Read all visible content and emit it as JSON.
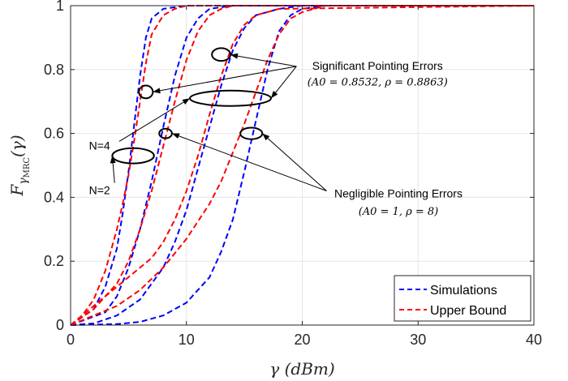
{
  "chart_data": {
    "type": "line",
    "xlabel": "γ (dBm)",
    "ylabel": "F_γMRC(γ)",
    "ylabel_main": "F",
    "ylabel_sub": "γ",
    "ylabel_subsub": "MRC",
    "ylabel_arg": "(γ)",
    "xlim": [
      0,
      40
    ],
    "ylim": [
      0,
      1
    ],
    "xticks": [
      0,
      10,
      20,
      30,
      40
    ],
    "yticks": [
      0,
      0.2,
      0.4,
      0.6,
      0.8,
      1
    ],
    "xtick_labels": [
      "0",
      "10",
      "20",
      "30",
      "40"
    ],
    "ytick_labels": [
      "0",
      "0.2",
      "0.4",
      "0.6",
      "0.8",
      "1"
    ],
    "grid": true,
    "legend_position": "bottom-right",
    "colors": {
      "simulations": "#0000ff",
      "upper_bound": "#ff0000"
    },
    "series": [
      {
        "name": "Simulations",
        "style": "dashed",
        "color": "#0000ff",
        "x": [
          0,
          2,
          3,
          4,
          4.5,
          5,
          5.5,
          6,
          6.5,
          7,
          8,
          10,
          20,
          40
        ],
        "y": [
          0,
          0.05,
          0.12,
          0.24,
          0.35,
          0.48,
          0.63,
          0.78,
          0.9,
          0.96,
          0.99,
          1.0,
          1.0,
          1.0
        ]
      },
      {
        "name": "",
        "style": "dashed",
        "color": "#0000ff",
        "x": [
          0,
          3,
          4,
          5,
          6,
          7,
          8,
          9,
          10,
          11,
          12,
          14,
          20,
          40
        ],
        "y": [
          0,
          0.04,
          0.09,
          0.18,
          0.3,
          0.45,
          0.62,
          0.78,
          0.9,
          0.96,
          0.99,
          1.0,
          1.0,
          1.0
        ]
      },
      {
        "name": "",
        "style": "dashed",
        "color": "#0000ff",
        "x": [
          0,
          2,
          4,
          6,
          8,
          9,
          10,
          11,
          12,
          13,
          14,
          15,
          16,
          18,
          20,
          40
        ],
        "y": [
          0,
          0.005,
          0.03,
          0.08,
          0.18,
          0.26,
          0.36,
          0.49,
          0.62,
          0.75,
          0.86,
          0.93,
          0.97,
          0.99,
          1.0,
          1.0
        ]
      },
      {
        "name": "",
        "style": "dashed",
        "color": "#0000ff",
        "x": [
          0,
          4,
          6,
          8,
          10,
          12,
          13,
          14,
          15,
          16,
          17,
          18,
          19,
          20,
          22,
          40
        ],
        "y": [
          0,
          0.003,
          0.01,
          0.03,
          0.07,
          0.15,
          0.23,
          0.33,
          0.48,
          0.64,
          0.8,
          0.92,
          0.97,
          0.99,
          1.0,
          1.0
        ]
      },
      {
        "name": "Upper Bound",
        "style": "dashed",
        "color": "#ff0000",
        "x": [
          0,
          1,
          2,
          3,
          4,
          4.5,
          5,
          5.5,
          6,
          6.5,
          7,
          8,
          9,
          10,
          12,
          40
        ],
        "y": [
          0,
          0.03,
          0.08,
          0.17,
          0.3,
          0.38,
          0.47,
          0.58,
          0.7,
          0.82,
          0.91,
          0.97,
          0.99,
          1.0,
          1.0,
          1.0
        ]
      },
      {
        "name": "",
        "style": "dashed",
        "color": "#ff0000",
        "x": [
          0,
          2,
          4,
          5,
          6,
          7,
          8,
          9,
          10,
          11,
          12,
          13,
          14,
          16,
          40
        ],
        "y": [
          0,
          0.05,
          0.13,
          0.2,
          0.3,
          0.42,
          0.56,
          0.7,
          0.83,
          0.92,
          0.97,
          0.99,
          1.0,
          1.0,
          1.0
        ]
      },
      {
        "name": "",
        "style": "dashed",
        "color": "#ff0000",
        "x": [
          0,
          1,
          2,
          3,
          4,
          5,
          6,
          7,
          8,
          9,
          10,
          11,
          12,
          13,
          14,
          15,
          16,
          18,
          40
        ],
        "y": [
          0,
          0.03,
          0.06,
          0.09,
          0.12,
          0.15,
          0.18,
          0.21,
          0.26,
          0.33,
          0.42,
          0.53,
          0.66,
          0.78,
          0.88,
          0.94,
          0.97,
          0.99,
          1.0
        ]
      },
      {
        "name": "",
        "style": "dashed",
        "color": "#ff0000",
        "x": [
          0,
          2,
          4,
          6,
          8,
          10,
          12,
          13,
          14,
          15,
          16,
          17,
          18,
          19,
          20,
          22,
          40
        ],
        "y": [
          0,
          0.03,
          0.06,
          0.11,
          0.18,
          0.27,
          0.38,
          0.45,
          0.54,
          0.63,
          0.73,
          0.83,
          0.91,
          0.96,
          0.98,
          1.0,
          1.0
        ]
      }
    ],
    "ellipses": [
      {
        "cx": 6.5,
        "cy": 0.73,
        "rx": 0.6,
        "ry": 0.02
      },
      {
        "cx": 13.0,
        "cy": 0.847,
        "rx": 0.8,
        "ry": 0.02
      },
      {
        "cx": 13.8,
        "cy": 0.71,
        "rx": 3.5,
        "ry": 0.024
      },
      {
        "cx": 5.4,
        "cy": 0.53,
        "rx": 1.8,
        "ry": 0.024
      },
      {
        "cx": 8.2,
        "cy": 0.6,
        "rx": 0.55,
        "ry": 0.015
      },
      {
        "cx": 15.6,
        "cy": 0.6,
        "rx": 0.95,
        "ry": 0.018
      }
    ],
    "arrows": [
      {
        "from": [
          19.5,
          0.81
        ],
        "to": [
          13.8,
          0.846
        ]
      },
      {
        "from": [
          19.5,
          0.81
        ],
        "to": [
          7.1,
          0.73
        ]
      },
      {
        "from": [
          19.5,
          0.81
        ],
        "to": [
          17.3,
          0.71
        ]
      },
      {
        "from": [
          4.2,
          0.575
        ],
        "to": [
          10.3,
          0.71
        ]
      },
      {
        "from": [
          3.8,
          0.445
        ],
        "to": [
          3.6,
          0.53
        ]
      },
      {
        "from": [
          22.1,
          0.42
        ],
        "to": [
          8.75,
          0.6
        ]
      },
      {
        "from": [
          22.1,
          0.42
        ],
        "to": [
          16.55,
          0.6
        ]
      }
    ],
    "annotations": {
      "significant_line1": "Significant Pointing Errors",
      "significant_line2": "(A0 = 0.8532, ρ = 0.8863)",
      "negligible_line1": "Negligible Pointing Errors",
      "negligible_line2": "(A0 = 1, ρ = 8)",
      "n4": "N=4",
      "n2": "N=2"
    },
    "legend": [
      {
        "label": "Simulations",
        "color": "#0000ff"
      },
      {
        "label": "Upper Bound",
        "color": "#ff0000"
      }
    ]
  }
}
